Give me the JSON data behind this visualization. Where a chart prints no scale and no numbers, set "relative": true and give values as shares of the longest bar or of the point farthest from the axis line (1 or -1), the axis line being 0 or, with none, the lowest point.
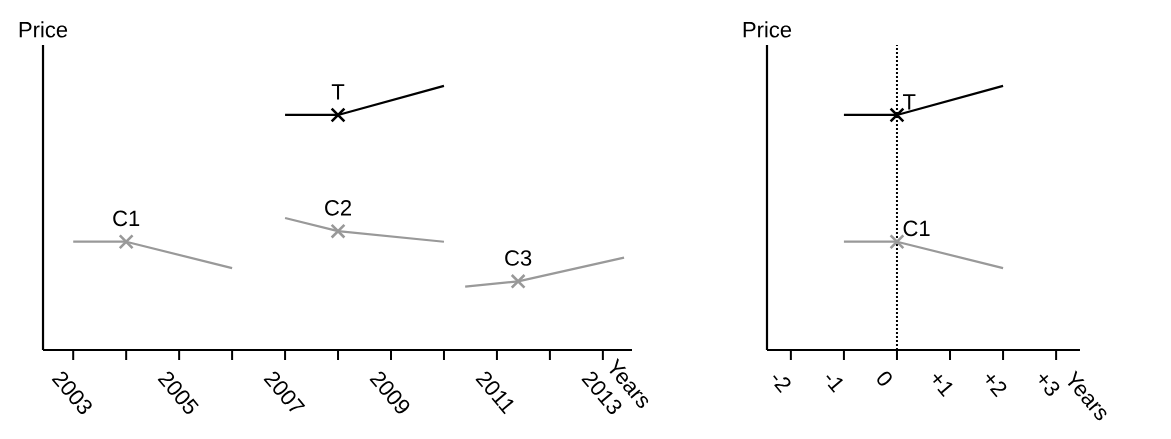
{
  "chart_data": [
    {
      "type": "line",
      "relative": true,
      "xlabel": "Years",
      "ylabel": "Price",
      "xlim": [
        2002.43,
        2013.55
      ],
      "xticks": [
        2003,
        {
          "value": 2004,
          "label": null
        },
        2005,
        {
          "value": 2006,
          "label": null
        },
        2007,
        {
          "value": 2008,
          "label": null
        },
        2009,
        {
          "value": 2010,
          "label": null
        },
        2011,
        {
          "value": 2012,
          "label": null
        },
        2013
      ],
      "series": [
        {
          "name": "T",
          "color": "#000000",
          "x": [
            2007,
            2008,
            2010
          ],
          "values": [
            0.89,
            0.89,
            1
          ]
        },
        {
          "type": "scatter",
          "marker": "cross",
          "color": "#000000",
          "x": [
            2008
          ],
          "values": [
            0.89
          ]
        },
        {
          "name": "C1",
          "color": "#999999",
          "x": [
            2003,
            2004,
            2006
          ],
          "values": [
            0.41,
            0.41,
            0.31
          ]
        },
        {
          "type": "scatter",
          "marker": "cross",
          "color": "#999999",
          "x": [
            2004
          ],
          "values": [
            0.41
          ]
        },
        {
          "name": "C2",
          "color": "#999999",
          "x": [
            2007,
            2008,
            2010
          ],
          "values": [
            0.5,
            0.45,
            0.41
          ]
        },
        {
          "type": "scatter",
          "marker": "cross",
          "color": "#999999",
          "x": [
            2008
          ],
          "values": [
            0.45
          ]
        },
        {
          "name": "C3",
          "color": "#999999",
          "x": [
            2010.4,
            2011.4,
            2013.4
          ],
          "values": [
            0.24,
            0.26,
            0.35
          ]
        },
        {
          "type": "scatter",
          "marker": "cross",
          "color": "#999999",
          "x": [
            2011.4
          ],
          "values": [
            0.26
          ]
        }
      ]
    },
    {
      "type": "line",
      "relative": true,
      "xlabel": "Years",
      "ylabel": "Price",
      "xlim": [
        -2.45,
        3.45
      ],
      "xticks": [
        -2,
        -1,
        0,
        {
          "value": 1,
          "label": "+1"
        },
        {
          "value": 2,
          "label": "+2"
        },
        {
          "value": 3,
          "label": "+3"
        }
      ],
      "ref_lines": [
        {
          "axis": "x",
          "value": 0,
          "line_style": "dotted",
          "color": "#000000"
        }
      ],
      "series": [
        {
          "name": "T",
          "color": "#000000",
          "x": [
            -1,
            0,
            2
          ],
          "values": [
            0.89,
            0.89,
            1
          ]
        },
        {
          "type": "scatter",
          "marker": "cross",
          "color": "#000000",
          "x": [
            0
          ],
          "values": [
            0.89
          ]
        },
        {
          "name": "C1",
          "color": "#999999",
          "x": [
            -1,
            0,
            2
          ],
          "values": [
            0.41,
            0.41,
            0.31
          ]
        },
        {
          "type": "scatter",
          "marker": "cross",
          "color": "#999999",
          "x": [
            0
          ],
          "values": [
            0.41
          ]
        }
      ]
    }
  ]
}
